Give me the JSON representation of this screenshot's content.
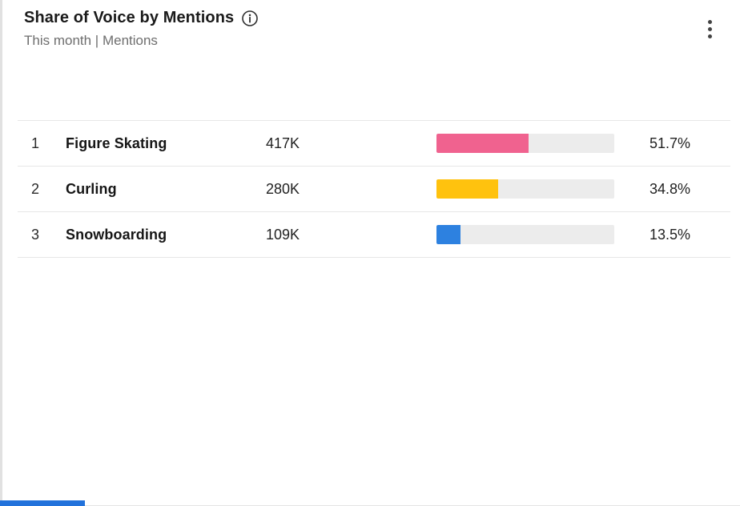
{
  "header": {
    "title": "Share of Voice by Mentions",
    "subtitle": "This month | Mentions",
    "info_icon": "info-icon",
    "menu_icon": "kebab-menu-icon"
  },
  "rows": [
    {
      "rank": "1",
      "name": "Figure Skating",
      "mentions": "417K",
      "percent": "51.7%",
      "percent_value": 51.7,
      "bar_color": "#f0628f"
    },
    {
      "rank": "2",
      "name": "Curling",
      "mentions": "280K",
      "percent": "34.8%",
      "percent_value": 34.8,
      "bar_color": "#ffc20e"
    },
    {
      "rank": "3",
      "name": "Snowboarding",
      "mentions": "109K",
      "percent": "13.5%",
      "percent_value": 13.5,
      "bar_color": "#2d81e0"
    }
  ],
  "colors": {
    "bar_track": "#ececec",
    "row_border": "#e7e7e7",
    "card_left_border": "#e1e1e1",
    "scrollbar_thumb": "#2272db"
  },
  "chart_data": {
    "type": "bar",
    "title": "Share of Voice by Mentions",
    "subtitle": "This month | Mentions",
    "categories": [
      "Figure Skating",
      "Curling",
      "Snowboarding"
    ],
    "series": [
      {
        "name": "Share of Voice (%)",
        "values": [
          51.7,
          34.8,
          13.5
        ]
      },
      {
        "name": "Mentions",
        "values": [
          "417K",
          "280K",
          "109K"
        ]
      }
    ],
    "xlabel": "",
    "ylabel": "",
    "xlim": [
      0,
      100
    ],
    "legend": "none",
    "grid": false
  }
}
